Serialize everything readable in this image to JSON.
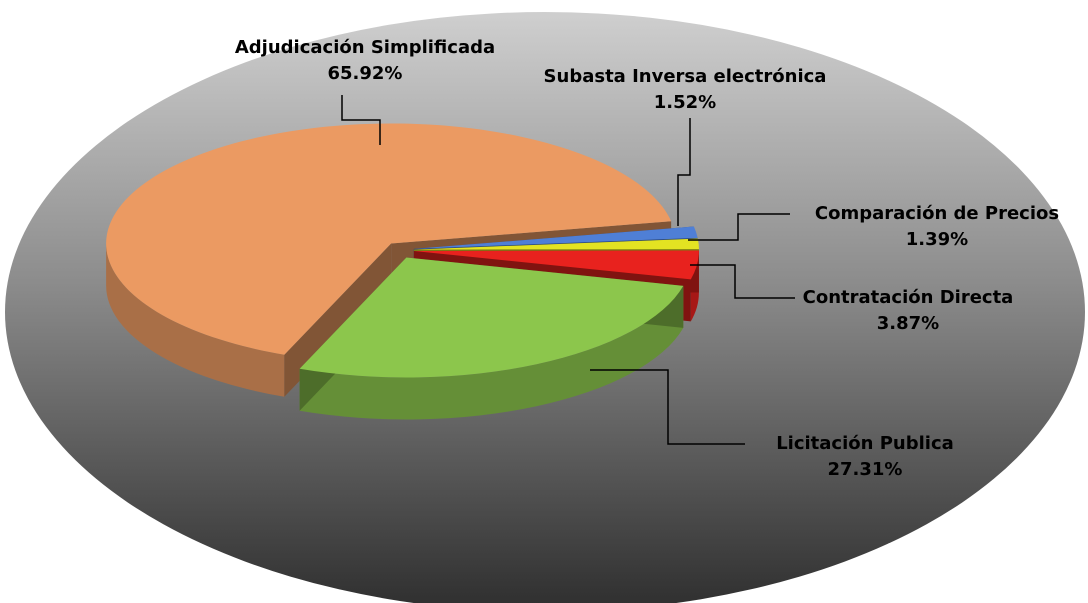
{
  "chart_data": {
    "type": "pie",
    "categories": [
      "Adjudicación Simplificada",
      "Subasta Inversa electrónica",
      "Comparación de Precios",
      "Contratación Directa",
      "Licitación Publica"
    ],
    "values": [
      65.92,
      1.52,
      1.39,
      3.87,
      27.31
    ],
    "value_labels": [
      "65.92%",
      "1.52%",
      "1.39%",
      "3.87%",
      "27.31%"
    ],
    "colors": [
      "#eb9a62",
      "#4f7fd6",
      "#e3e322",
      "#e8221e",
      "#8cc64c"
    ]
  }
}
